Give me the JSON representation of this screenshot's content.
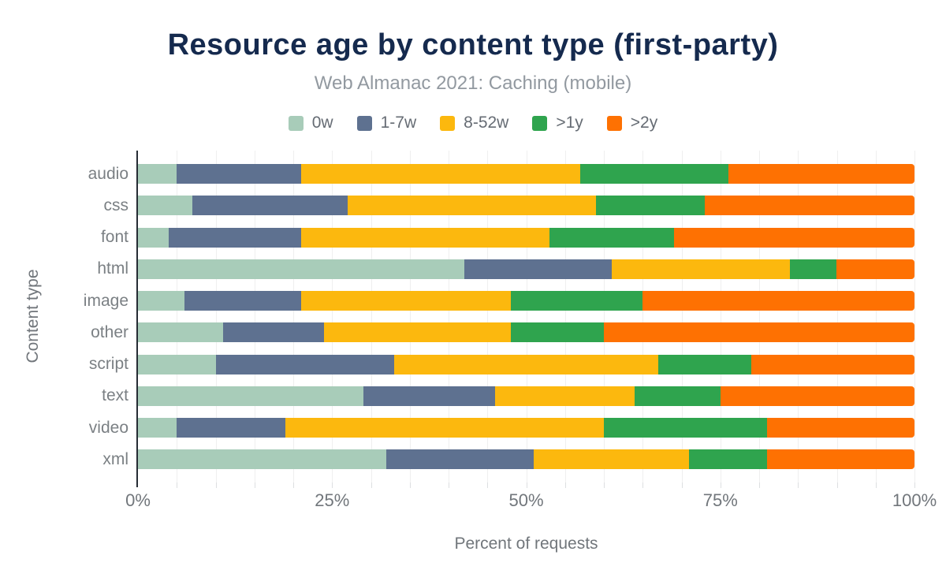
{
  "header": {
    "title": "Resource age by content type (first-party)",
    "subtitle": "Web Almanac 2021: Caching (mobile)"
  },
  "axes": {
    "x_title": "Percent of requests",
    "y_title": "Content type"
  },
  "palette": {
    "title_navy": "#152a4e",
    "subtitle_gray": "#9299a0",
    "label_gray": "#7b8084",
    "axis_line": "#262c34",
    "gridline": "#efefef"
  },
  "chart_data": {
    "type": "bar",
    "orientation": "horizontal",
    "stacked": true,
    "title": "Resource age by content type (first-party)",
    "subtitle": "Web Almanac 2021: Caching (mobile)",
    "xlabel": "Percent of requests",
    "ylabel": "Content type",
    "xlim": [
      0,
      100
    ],
    "grid_step_percent": 5,
    "legend_position": "top",
    "categories": [
      "audio",
      "css",
      "font",
      "html",
      "image",
      "other",
      "script",
      "text",
      "video",
      "xml"
    ],
    "series": [
      {
        "name": "0w",
        "color": "#a8ccb9",
        "values": [
          5,
          7,
          4,
          42,
          6,
          11,
          10,
          29,
          5,
          32
        ]
      },
      {
        "name": "1-7w",
        "color": "#5e7190",
        "values": [
          16,
          20,
          17,
          19,
          15,
          13,
          23,
          17,
          14,
          19
        ]
      },
      {
        "name": "8-52w",
        "color": "#fcb80e",
        "values": [
          36,
          32,
          32,
          23,
          27,
          24,
          34,
          18,
          41,
          20
        ]
      },
      {
        "name": ">1y",
        "color": "#2fa44e",
        "values": [
          19,
          14,
          16,
          6,
          17,
          12,
          12,
          11,
          21,
          10
        ]
      },
      {
        "name": ">2y",
        "color": "#fe7102",
        "values": [
          24,
          27,
          31,
          10,
          35,
          40,
          21,
          25,
          19,
          19
        ]
      }
    ],
    "xticks": [
      {
        "pos": 0,
        "label": "0%"
      },
      {
        "pos": 25,
        "label": "25%"
      },
      {
        "pos": 50,
        "label": "50%"
      },
      {
        "pos": 75,
        "label": "75%"
      },
      {
        "pos": 100,
        "label": "100%"
      }
    ]
  }
}
